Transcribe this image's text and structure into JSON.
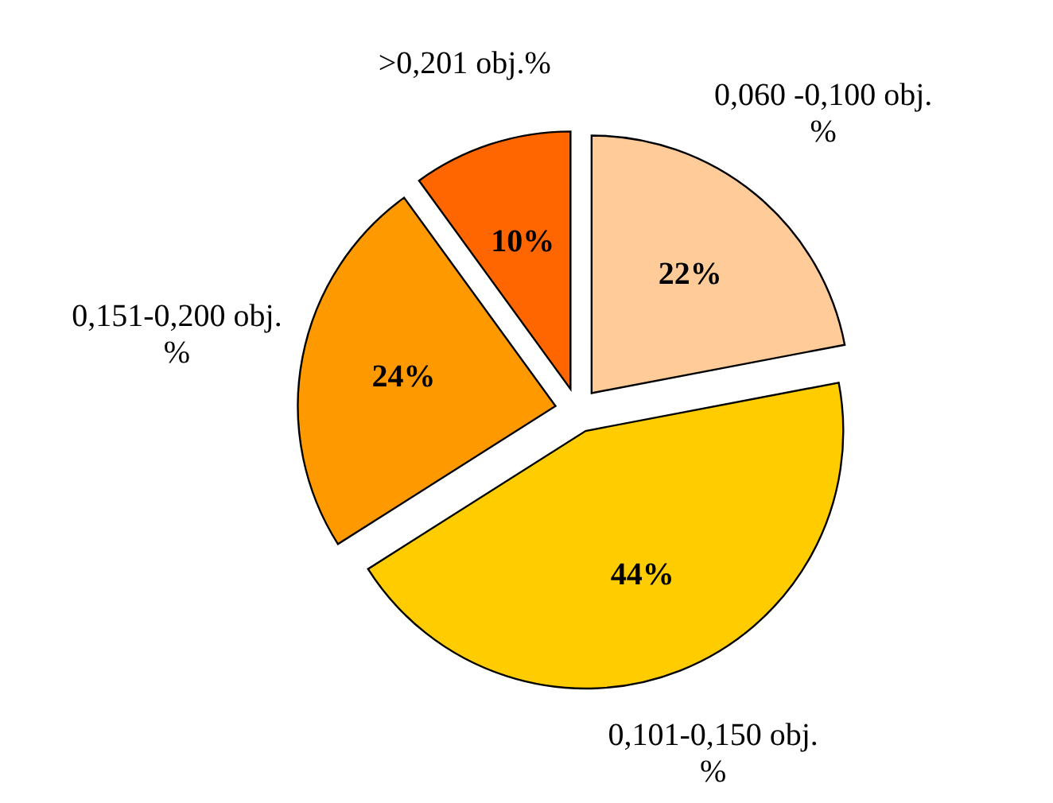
{
  "chart_data": {
    "type": "pie",
    "categories": [
      "0,060 -0,100 obj. %",
      "0,101-0,150 obj. %",
      "0,151-0,200 obj. %",
      ">0,201 obj.%"
    ],
    "values": [
      22,
      44,
      24,
      10
    ],
    "colors": [
      "#ffcc99",
      "#ffcc00",
      "#ff9900",
      "#ff6600"
    ],
    "value_labels": [
      "22%",
      "44%",
      "24%",
      "10%"
    ]
  }
}
